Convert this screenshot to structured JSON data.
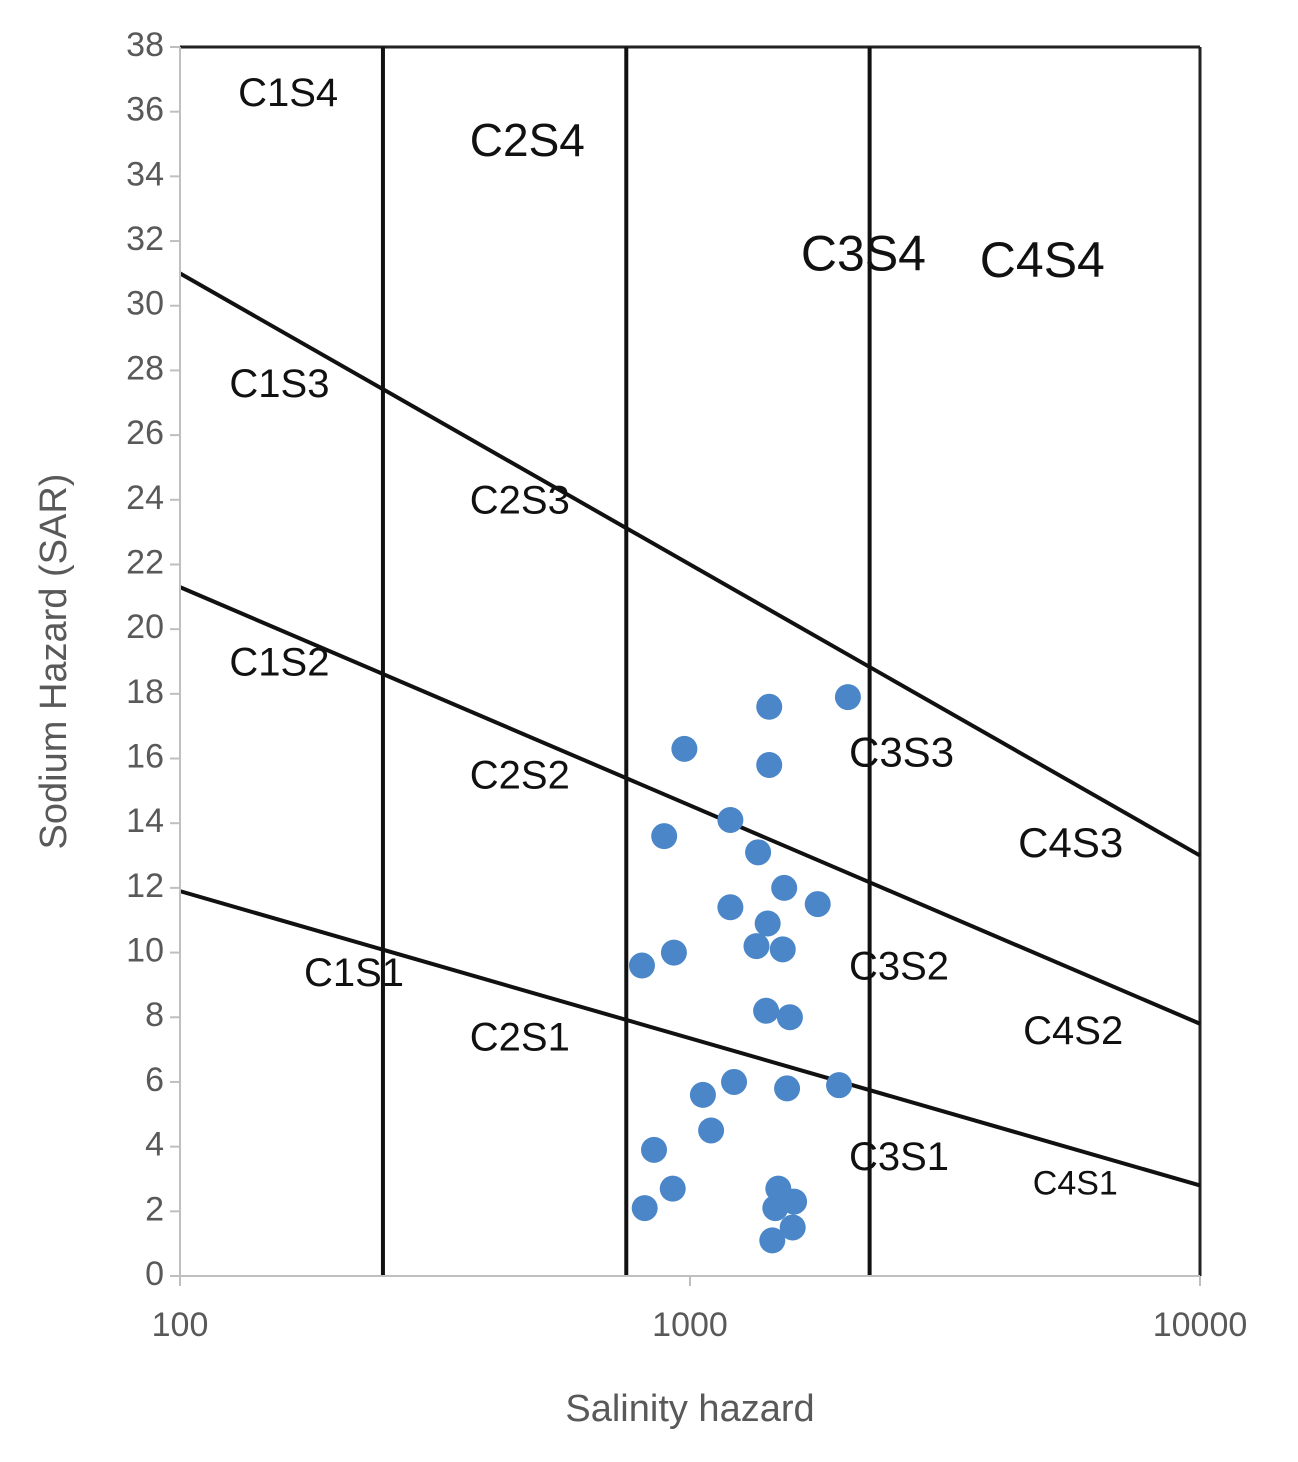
{
  "chart_data": {
    "type": "scatter",
    "title": "",
    "xlabel": "Salinity hazard",
    "ylabel": "Sodium Hazard (SAR)",
    "x_scale": "log",
    "xlim": [
      100,
      10000
    ],
    "ylim": [
      0,
      38
    ],
    "x_ticks": [
      "100",
      "1000",
      "10000"
    ],
    "y_ticks": [
      "0",
      "2",
      "4",
      "6",
      "8",
      "10",
      "12",
      "14",
      "16",
      "18",
      "20",
      "22",
      "24",
      "26",
      "28",
      "30",
      "32",
      "34",
      "36",
      "38"
    ],
    "grid": false,
    "legend": "none",
    "point_color": "#4a86c8",
    "boundaries": {
      "vertical_x": [
        250,
        750,
        2250
      ],
      "sloped_lines": [
        {
          "y_at_100": 31,
          "y_at_10000": 13
        },
        {
          "y_at_100": 21.3,
          "y_at_10000": 7.8
        },
        {
          "y_at_100": 11.9,
          "y_at_10000": 2.8
        }
      ]
    },
    "zones": [
      {
        "label": "C1S4",
        "x": 130,
        "y": 36.5,
        "size": 40
      },
      {
        "label": "C2S4",
        "x": 370,
        "y": 35.0,
        "size": 46
      },
      {
        "label": "C3S4",
        "x": 1650,
        "y": 31.5,
        "size": 50
      },
      {
        "label": "C4S4",
        "x": 3700,
        "y": 31.3,
        "size": 50
      },
      {
        "label": "C1S3",
        "x": 125,
        "y": 27.5,
        "size": 40
      },
      {
        "label": "C2S3",
        "x": 370,
        "y": 23.9,
        "size": 40
      },
      {
        "label": "C3S3",
        "x": 2050,
        "y": 16.1,
        "size": 42
      },
      {
        "label": "C4S3",
        "x": 4400,
        "y": 13.3,
        "size": 42
      },
      {
        "label": "C1S2",
        "x": 125,
        "y": 18.9,
        "size": 40
      },
      {
        "label": "C2S2",
        "x": 370,
        "y": 15.4,
        "size": 40
      },
      {
        "label": "C3S2",
        "x": 2050,
        "y": 9.5,
        "size": 40
      },
      {
        "label": "C4S2",
        "x": 4500,
        "y": 7.5,
        "size": 40
      },
      {
        "label": "C1S1",
        "x": 175,
        "y": 9.3,
        "size": 40
      },
      {
        "label": "C2S1",
        "x": 370,
        "y": 7.3,
        "size": 40
      },
      {
        "label": "C3S1",
        "x": 2050,
        "y": 3.6,
        "size": 40
      },
      {
        "label": "C4S1",
        "x": 4700,
        "y": 2.8,
        "size": 34
      }
    ],
    "points": [
      {
        "x": 2040,
        "y": 17.9
      },
      {
        "x": 1430,
        "y": 17.6
      },
      {
        "x": 1430,
        "y": 15.8
      },
      {
        "x": 975,
        "y": 16.3
      },
      {
        "x": 1200,
        "y": 14.1
      },
      {
        "x": 890,
        "y": 13.6
      },
      {
        "x": 1360,
        "y": 13.1
      },
      {
        "x": 1530,
        "y": 12.0
      },
      {
        "x": 1200,
        "y": 11.4
      },
      {
        "x": 1420,
        "y": 10.9
      },
      {
        "x": 1780,
        "y": 11.5
      },
      {
        "x": 1350,
        "y": 10.2
      },
      {
        "x": 1520,
        "y": 10.1
      },
      {
        "x": 930,
        "y": 10.0
      },
      {
        "x": 805,
        "y": 9.6
      },
      {
        "x": 1410,
        "y": 8.2
      },
      {
        "x": 1570,
        "y": 8.0
      },
      {
        "x": 1220,
        "y": 6.0
      },
      {
        "x": 1060,
        "y": 5.6
      },
      {
        "x": 1550,
        "y": 5.8
      },
      {
        "x": 1960,
        "y": 5.9
      },
      {
        "x": 1100,
        "y": 4.5
      },
      {
        "x": 850,
        "y": 3.9
      },
      {
        "x": 925,
        "y": 2.7
      },
      {
        "x": 815,
        "y": 2.1
      },
      {
        "x": 1490,
        "y": 2.7
      },
      {
        "x": 1600,
        "y": 2.3
      },
      {
        "x": 1470,
        "y": 2.1
      },
      {
        "x": 1590,
        "y": 1.5
      },
      {
        "x": 1450,
        "y": 1.1
      }
    ]
  }
}
